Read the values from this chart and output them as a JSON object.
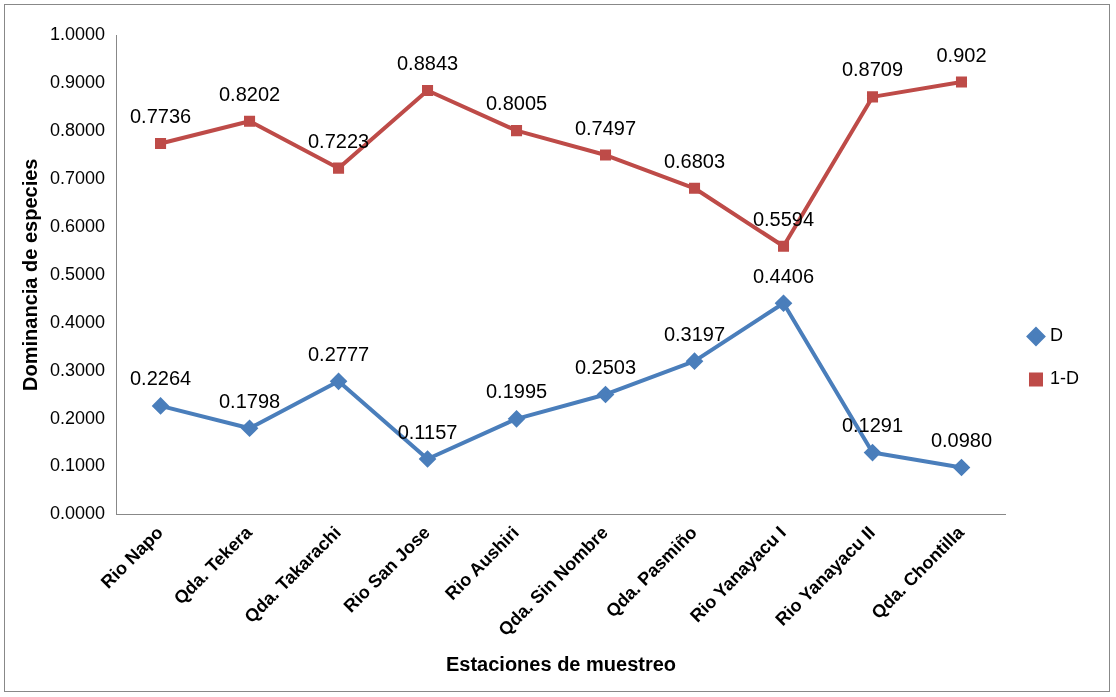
{
  "chart_data": {
    "type": "line",
    "xlabel": "Estaciones de muestreo",
    "ylabel": "Dominancia de especies",
    "categories": [
      "Rio Napo",
      "Qda. Tekera",
      "Qda. Takarachi",
      "Rio San Jose",
      "Rio Aushiri",
      "Qda. Sin Nombre",
      "Qda. Pasmiño",
      "Rio Yanayacu I",
      "Rio Yanayacu II",
      "Qda. Chontilla"
    ],
    "series": [
      {
        "name": "D",
        "color": "#4a7ebb",
        "marker": "diamond",
        "values": [
          0.2264,
          0.1798,
          0.2777,
          0.1157,
          0.1995,
          0.2503,
          0.3197,
          0.4406,
          0.1291,
          0.098
        ],
        "value_labels": [
          "0.2264",
          "0.1798",
          "0.2777",
          "0.1157",
          "0.1995",
          "0.2503",
          "0.3197",
          "0.4406",
          "0.1291",
          "0.0980"
        ]
      },
      {
        "name": "1-D",
        "color": "#be4b48",
        "marker": "square",
        "values": [
          0.7736,
          0.8202,
          0.7223,
          0.8843,
          0.8005,
          0.7497,
          0.6803,
          0.5594,
          0.8709,
          0.902
        ],
        "value_labels": [
          "0.7736",
          "0.8202",
          "0.7223",
          "0.8843",
          "0.8005",
          "0.7497",
          "0.6803",
          "0.5594",
          "0.8709",
          "0.902"
        ]
      }
    ],
    "ylim": [
      0,
      1
    ],
    "yticks": [
      {
        "value": 0,
        "label": "0.0000"
      },
      {
        "value": 0.1,
        "label": "0.1000"
      },
      {
        "value": 0.2,
        "label": "0.2000"
      },
      {
        "value": 0.3,
        "label": "0.3000"
      },
      {
        "value": 0.4,
        "label": "0.4000"
      },
      {
        "value": 0.5,
        "label": "0.5000"
      },
      {
        "value": 0.6,
        "label": "0.6000"
      },
      {
        "value": 0.7,
        "label": "0.7000"
      },
      {
        "value": 0.8,
        "label": "0.8000"
      },
      {
        "value": 0.9,
        "label": "0.9000"
      },
      {
        "value": 1,
        "label": "1.0000"
      }
    ],
    "grid": false,
    "legend": "right",
    "line_style": "solid"
  }
}
